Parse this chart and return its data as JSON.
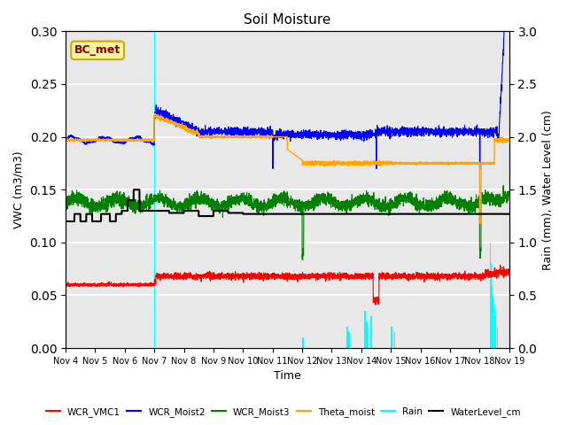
{
  "title": "Soil Moisture",
  "ylabel_left": "VWC (m3/m3)",
  "ylabel_right": "Rain (mm), Water Level (cm)",
  "xlabel": "Time",
  "ylim_left": [
    0.0,
    0.3
  ],
  "ylim_right": [
    0.0,
    3.0
  ],
  "bg_color": "#e8e8e8",
  "annotation_text": "BC_met",
  "annotation_color": "#8b0000",
  "annotation_bg": "#f5f5a0",
  "annotation_border": "#ccaa00",
  "x_tick_labels": [
    "Nov 4",
    "Nov 5",
    "Nov 6",
    "Nov 7",
    "Nov 8",
    "Nov 9",
    "Nov 10",
    "Nov 11",
    "Nov 12",
    "Nov 13",
    "Nov 14",
    "Nov 15",
    "Nov 16",
    "Nov 17",
    "Nov 18",
    "Nov 19"
  ],
  "grid_color": "white",
  "title_fontsize": 11,
  "tick_fontsize": 7,
  "label_fontsize": 9
}
